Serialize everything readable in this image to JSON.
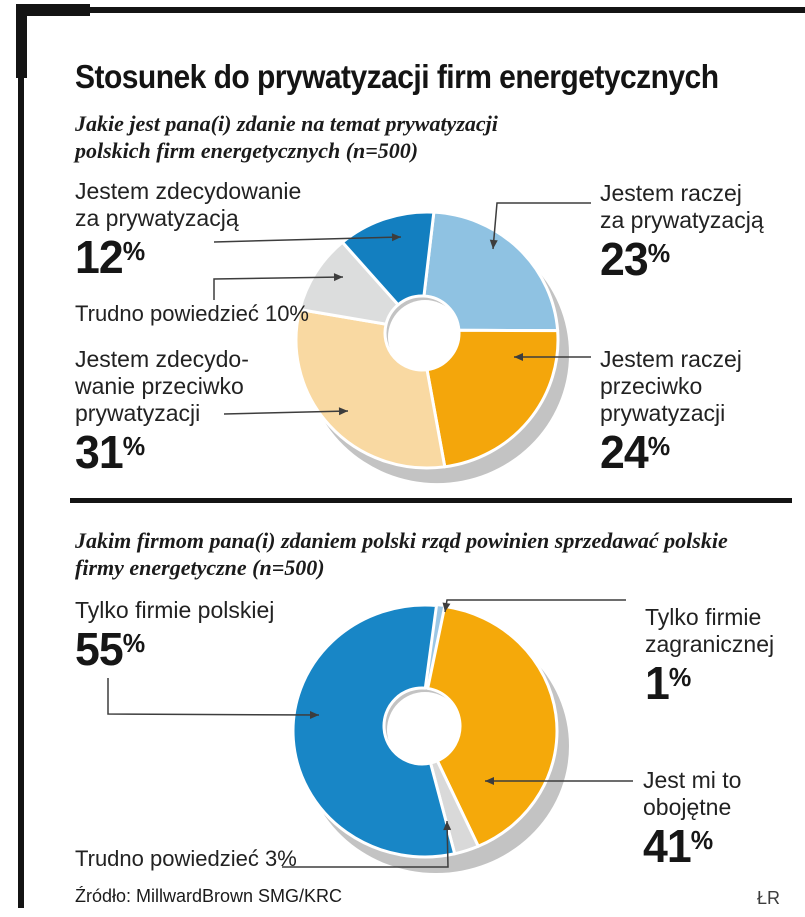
{
  "header": {
    "title": "Stosunek do prywatyzacji firm energetycznych"
  },
  "q1_subtitle": [
    "Jakie jest pana(i) zdanie na temat prywatyzacji",
    "polskich firm energetycznych (n=500)"
  ],
  "q2_subtitle": [
    "Jakim firmom pana(i) zdaniem polski rząd powinien sprzedawać polskie",
    "firmy energetyczne (n=500)"
  ],
  "q1_labels": {
    "zdec_za": {
      "l1": "Jestem zdecydowanie",
      "l2": "za prywatyzacją",
      "digits": "12",
      "unit": "%"
    },
    "raczej_za": {
      "l1": "Jestem raczej",
      "l2": "za prywatyzacją",
      "digits": "23",
      "unit": "%"
    },
    "trudno": {
      "text": "Trudno powiedzieć 10%"
    },
    "zdec_przeciw": {
      "l1": "Jestem zdecydo-",
      "l2": "wanie przeciwko",
      "l3": "prywatyzacji",
      "digits": "31",
      "unit": "%"
    },
    "raczej_przeciw": {
      "l1": "Jestem raczej",
      "l2": "przeciwko",
      "l3": "prywatyzacji",
      "digits": "24",
      "unit": "%"
    }
  },
  "q2_labels": {
    "polska": {
      "l1": "Tylko firmie polskiej",
      "digits": "55",
      "unit": "%"
    },
    "zagraniczna": {
      "l1": "Tylko firmie",
      "l2": "zagranicznej",
      "digits": "1",
      "unit": "%"
    },
    "obojetne": {
      "l1": "Jest mi to",
      "l2": "obojętne",
      "digits": "41",
      "unit": "%"
    },
    "trudno": {
      "text": "Trudno powiedzieć 3%"
    }
  },
  "footer": {
    "source": "Źródło: MillwardBrown SMG/KRC",
    "credit": "ŁR"
  },
  "chart_data": [
    {
      "type": "pie",
      "style": "3d-donut",
      "title": "Jakie jest pana(i) zdanie na temat prywatyzacji polskich firm energetycznych",
      "sample": "n=500",
      "clockwise_from_top": true,
      "start_angle_deg": 3,
      "shadow_color": "#c3c3c3",
      "slices": [
        {
          "label": "Jestem raczej za prywatyzacją",
          "value": 23,
          "color": "#8fc2e2"
        },
        {
          "label": "Jestem raczej przeciwko prywatyzacji",
          "value": 24,
          "color": "#f4a60b"
        },
        {
          "label": "Jestem zdecydowanie przeciwko prywatyzacji",
          "value": 31,
          "color": "#f9d9a2"
        },
        {
          "label": "Trudno powiedzieć",
          "value": 10,
          "color": "#dcdddd"
        },
        {
          "label": "Jestem zdecydowanie za prywatyzacją",
          "value": 12,
          "color": "#137fc0"
        }
      ]
    },
    {
      "type": "pie",
      "style": "3d-donut",
      "title": "Jakim firmom pana(i) zdaniem polski rząd powinien sprzedawać polskie firmy energetyczne",
      "sample": "n=500",
      "clockwise_from_top": true,
      "start_angle_deg": 5,
      "shadow_color": "#c3c3c3",
      "slices": [
        {
          "label": "Tylko firmie zagranicznej",
          "value": 1,
          "color": "#9cc7e5"
        },
        {
          "label": "Jest mi to obojętne",
          "value": 41,
          "color": "#f5a90a"
        },
        {
          "label": "Trudno powiedzieć",
          "value": 3,
          "color": "#d9d9d9"
        },
        {
          "label": "Tylko firmie polskiej",
          "value": 55,
          "color": "#1886c6"
        }
      ]
    }
  ]
}
